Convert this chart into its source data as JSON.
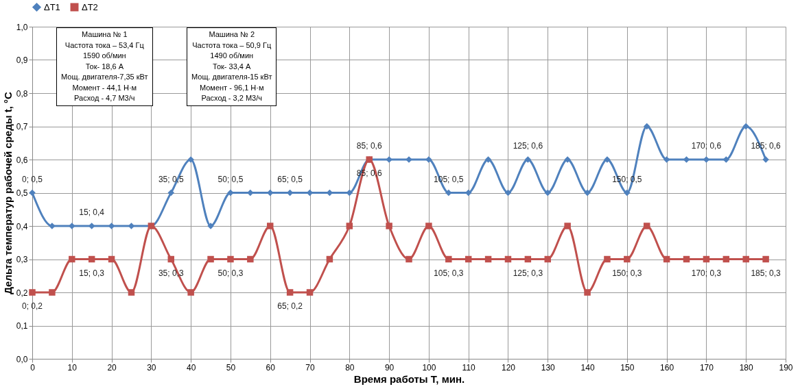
{
  "chart_data": {
    "type": "line",
    "xlabel": "Время работы T, мин.",
    "ylabel": "Дельта температур рабочей среды t, °C",
    "x": [
      0,
      5,
      10,
      15,
      20,
      25,
      30,
      35,
      40,
      45,
      50,
      55,
      60,
      65,
      70,
      75,
      80,
      85,
      90,
      95,
      100,
      105,
      110,
      115,
      120,
      125,
      130,
      135,
      140,
      145,
      150,
      155,
      160,
      165,
      170,
      175,
      180,
      185
    ],
    "series": [
      {
        "name": "ΔT1",
        "color": "#4f81bd",
        "marker": "diamond",
        "values": [
          0.5,
          0.4,
          0.4,
          0.4,
          0.4,
          0.4,
          0.4,
          0.5,
          0.6,
          0.4,
          0.5,
          0.5,
          0.5,
          0.5,
          0.5,
          0.5,
          0.5,
          0.6,
          0.6,
          0.6,
          0.6,
          0.5,
          0.5,
          0.6,
          0.5,
          0.6,
          0.5,
          0.6,
          0.5,
          0.6,
          0.5,
          0.7,
          0.6,
          0.6,
          0.6,
          0.6,
          0.7,
          0.6
        ],
        "value_labels": [
          "0; 0,5",
          null,
          null,
          "15; 0,4",
          null,
          null,
          null,
          "35; 0,5",
          null,
          null,
          "50; 0,5",
          null,
          null,
          "65; 0,5",
          null,
          null,
          null,
          "85; 0,6",
          null,
          null,
          null,
          "105; 0,5",
          null,
          null,
          null,
          "125; 0,6",
          null,
          null,
          null,
          null,
          "150; 0,5",
          null,
          null,
          null,
          "170; 0,6",
          null,
          null,
          "185; 0,6"
        ]
      },
      {
        "name": "ΔT2",
        "color": "#c0504d",
        "marker": "square",
        "values": [
          0.2,
          0.2,
          0.3,
          0.3,
          0.3,
          0.2,
          0.4,
          0.3,
          0.2,
          0.3,
          0.3,
          0.3,
          0.4,
          0.2,
          0.2,
          0.3,
          0.4,
          0.6,
          0.4,
          0.3,
          0.4,
          0.3,
          0.3,
          0.3,
          0.3,
          0.3,
          0.3,
          0.4,
          0.2,
          0.3,
          0.3,
          0.4,
          0.3,
          0.3,
          0.3,
          0.3,
          0.3,
          0.3
        ],
        "value_labels": [
          "0; 0,2",
          null,
          null,
          "15; 0,3",
          null,
          null,
          null,
          "35; 0,3",
          null,
          null,
          "50; 0,3",
          null,
          null,
          "65; 0,2",
          null,
          null,
          null,
          "85; 0,6",
          null,
          null,
          null,
          "105; 0,3",
          null,
          null,
          null,
          "125; 0,3",
          null,
          null,
          null,
          null,
          "150; 0,3",
          null,
          null,
          null,
          "170; 0,3",
          null,
          null,
          "185; 0,3"
        ]
      }
    ],
    "xlim": [
      0,
      190
    ],
    "xticks": [
      0,
      10,
      20,
      30,
      40,
      50,
      60,
      70,
      80,
      90,
      100,
      110,
      120,
      130,
      140,
      150,
      160,
      170,
      180,
      190
    ],
    "ylim": [
      0,
      1
    ],
    "yticks": [
      {
        "value": 0,
        "label": "0,0"
      },
      {
        "value": 0.1,
        "label": "0,1"
      },
      {
        "value": 0.2,
        "label": "0,2"
      },
      {
        "value": 0.3,
        "label": "0,3"
      },
      {
        "value": 0.4,
        "label": "0,4"
      },
      {
        "value": 0.5,
        "label": "0,5"
      },
      {
        "value": 0.6,
        "label": "0,6"
      },
      {
        "value": 0.7,
        "label": "0,7"
      },
      {
        "value": 0.8,
        "label": "0,8"
      },
      {
        "value": 0.9,
        "label": "0,9"
      },
      {
        "value": 1,
        "label": "1,0"
      }
    ],
    "grid": true,
    "legend": "top",
    "line_style": "solid",
    "annotations": [
      "Машина № 1\nЧастота тока – 53,4 Гц\n1590 об/мин\nТок- 18,6 А\nМощ. двигателя-7,35 кВт\nМомент -  44,1 Н·м\nРасход - 4,7  М3/ч",
      "Машина № 2\nЧастота тока – 50,9 Гц\n1490 об/мин\nТок- 33,4 А\nМощ. двигателя-15 кВт\nМомент - 96,1 Н·м\nРасход - 3,2  М3/ч"
    ]
  }
}
